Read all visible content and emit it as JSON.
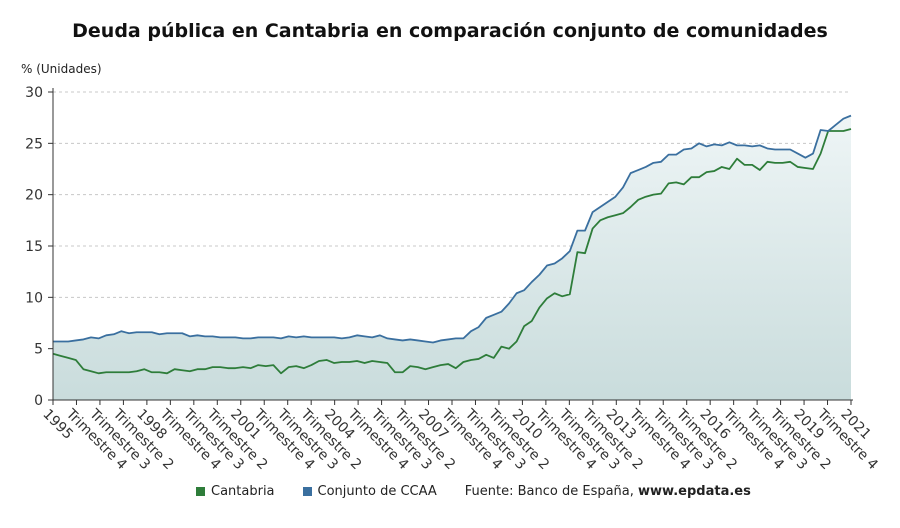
{
  "chart_data": {
    "type": "area",
    "title": "Deuda pública en Cantabria en comparación conjunto de comunidades",
    "ylabel": "% (Unidades)",
    "ylim": [
      0,
      30
    ],
    "yticks": [
      0,
      5,
      10,
      15,
      20,
      25,
      30
    ],
    "xtick_labels": [
      "1995",
      "Trimestre 4",
      "Trimestre 3",
      "Trimestre 2",
      "1998",
      "Trimestre 4",
      "Trimestre 3",
      "Trimestre 2",
      "2001",
      "Trimestre 4",
      "Trimestre 3",
      "Trimestre 2",
      "2004",
      "Trimestre 4",
      "Trimestre 3",
      "Trimestre 2",
      "2007",
      "Trimestre 4",
      "Trimestre 3",
      "Trimestre 2",
      "2010",
      "Trimestre 4",
      "Trimestre 3",
      "Trimestre 2",
      "2013",
      "Trimestre 4",
      "Trimestre 3",
      "Trimestre 2",
      "2016",
      "Trimestre 4",
      "Trimestre 3",
      "Trimestre 2",
      "2019",
      "Trimestre 4",
      "2021"
    ],
    "grid": true,
    "legend_position": "bottom",
    "series": [
      {
        "name": "Cantabria",
        "color": "#2e7d3a",
        "values": [
          4.5,
          4.3,
          4.1,
          3.9,
          3.0,
          2.8,
          2.6,
          2.7,
          2.7,
          2.7,
          2.7,
          2.8,
          3.0,
          2.7,
          2.7,
          2.6,
          3.0,
          2.9,
          2.8,
          3.0,
          3.0,
          3.2,
          3.2,
          3.1,
          3.1,
          3.2,
          3.1,
          3.4,
          3.3,
          3.4,
          2.6,
          3.2,
          3.3,
          3.1,
          3.4,
          3.8,
          3.9,
          3.6,
          3.7,
          3.7,
          3.8,
          3.6,
          3.8,
          3.7,
          3.6,
          2.7,
          2.7,
          3.3,
          3.2,
          3.0,
          3.2,
          3.4,
          3.5,
          3.1,
          3.7,
          3.9,
          4.0,
          4.4,
          4.1,
          5.2,
          5.0,
          5.7,
          7.2,
          7.7,
          9.0,
          9.9,
          10.4,
          10.1,
          10.3,
          14.4,
          14.3,
          16.7,
          17.5,
          17.8,
          18.0,
          18.2,
          18.8,
          19.5,
          19.8,
          20.0,
          20.1,
          21.1,
          21.2,
          21.0,
          21.7,
          21.7,
          22.2,
          22.3,
          22.7,
          22.5,
          23.5,
          22.9,
          22.9,
          22.4,
          23.2,
          23.1,
          23.1,
          23.2,
          22.7,
          22.6,
          22.5,
          24.0,
          26.2,
          26.2,
          26.2,
          26.4
        ]
      },
      {
        "name": "Conjunto de CCAA",
        "color": "#3a6f9f",
        "values": [
          5.7,
          5.7,
          5.7,
          5.8,
          5.9,
          6.1,
          6.0,
          6.3,
          6.4,
          6.7,
          6.5,
          6.6,
          6.6,
          6.6,
          6.4,
          6.5,
          6.5,
          6.5,
          6.2,
          6.3,
          6.2,
          6.2,
          6.1,
          6.1,
          6.1,
          6.0,
          6.0,
          6.1,
          6.1,
          6.1,
          6.0,
          6.2,
          6.1,
          6.2,
          6.1,
          6.1,
          6.1,
          6.1,
          6.0,
          6.1,
          6.3,
          6.2,
          6.1,
          6.3,
          6.0,
          5.9,
          5.8,
          5.9,
          5.8,
          5.7,
          5.6,
          5.8,
          5.9,
          6.0,
          6.0,
          6.7,
          7.1,
          8.0,
          8.3,
          8.6,
          9.4,
          10.4,
          10.7,
          11.5,
          12.2,
          13.1,
          13.3,
          13.8,
          14.5,
          16.5,
          16.5,
          18.3,
          18.8,
          19.3,
          19.8,
          20.7,
          22.1,
          22.4,
          22.7,
          23.1,
          23.2,
          23.9,
          23.9,
          24.4,
          24.5,
          25.0,
          24.7,
          24.9,
          24.8,
          25.1,
          24.8,
          24.8,
          24.7,
          24.8,
          24.5,
          24.4,
          24.4,
          24.4,
          24.0,
          23.6,
          24.0,
          26.3,
          26.2,
          26.8,
          27.4,
          27.7
        ]
      }
    ]
  },
  "legend": {
    "items": [
      {
        "label": "Cantabria",
        "color": "#2e7d3a"
      },
      {
        "label": "Conjunto de CCAA",
        "color": "#3a6f9f"
      }
    ],
    "source_prefix": "Fuente: Banco de España, ",
    "source_site": "www.epdata.es"
  }
}
